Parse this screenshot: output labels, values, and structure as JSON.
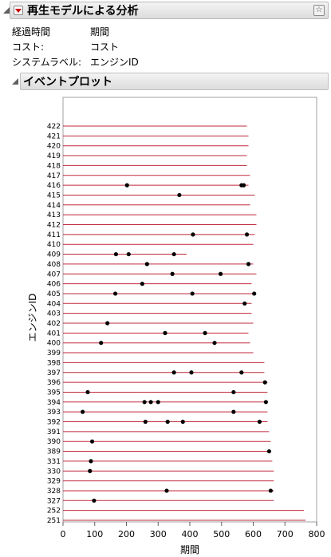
{
  "report": {
    "title": "再生モデルによる分析",
    "fields": [
      {
        "label": "経過時間",
        "value": "期間"
      },
      {
        "label": "コスト:",
        "value": "コスト"
      },
      {
        "label": "システムラベル:",
        "value": "エンジンID"
      }
    ]
  },
  "section": {
    "title": "イベントプロット"
  },
  "chart_data": {
    "type": "scatter",
    "xlabel": "期間",
    "ylabel": "エンジンID",
    "xlim": [
      0,
      800
    ],
    "xticks": [
      0,
      100,
      200,
      300,
      400,
      500,
      600,
      700,
      800
    ],
    "line_color": "#c0283c",
    "point_color": "#000000",
    "units": [
      {
        "id": "422",
        "end": 580,
        "events": []
      },
      {
        "id": "421",
        "end": 585,
        "events": []
      },
      {
        "id": "420",
        "end": 585,
        "events": []
      },
      {
        "id": "419",
        "end": 580,
        "events": []
      },
      {
        "id": "418",
        "end": 580,
        "events": []
      },
      {
        "id": "417",
        "end": 590,
        "events": []
      },
      {
        "id": "416",
        "end": 585,
        "events": [
          202,
          563,
          570
        ]
      },
      {
        "id": "415",
        "end": 605,
        "events": [
          367
        ]
      },
      {
        "id": "414",
        "end": 590,
        "events": []
      },
      {
        "id": "413",
        "end": 610,
        "events": []
      },
      {
        "id": "412",
        "end": 610,
        "events": []
      },
      {
        "id": "411",
        "end": 605,
        "events": [
          410,
          580
        ]
      },
      {
        "id": "410",
        "end": 600,
        "events": []
      },
      {
        "id": "409",
        "end": 390,
        "events": [
          167,
          207,
          350
        ]
      },
      {
        "id": "408",
        "end": 600,
        "events": [
          265,
          585
        ]
      },
      {
        "id": "407",
        "end": 610,
        "events": [
          345,
          497
        ]
      },
      {
        "id": "406",
        "end": 595,
        "events": [
          250
        ]
      },
      {
        "id": "405",
        "end": 605,
        "events": [
          165,
          408,
          603
        ]
      },
      {
        "id": "404",
        "end": 595,
        "events": [
          573
        ]
      },
      {
        "id": "403",
        "end": 595,
        "events": []
      },
      {
        "id": "402",
        "end": 600,
        "events": [
          140
        ]
      },
      {
        "id": "401",
        "end": 585,
        "events": [
          322,
          448
        ]
      },
      {
        "id": "400",
        "end": 590,
        "events": [
          120,
          478
        ]
      },
      {
        "id": "399",
        "end": 600,
        "events": []
      },
      {
        "id": "398",
        "end": 635,
        "events": []
      },
      {
        "id": "397",
        "end": 635,
        "events": [
          350,
          405,
          563
        ]
      },
      {
        "id": "396",
        "end": 645,
        "events": [
          637
        ]
      },
      {
        "id": "395",
        "end": 645,
        "events": [
          78,
          538
        ]
      },
      {
        "id": "394",
        "end": 645,
        "events": [
          257,
          277,
          300,
          640
        ]
      },
      {
        "id": "393",
        "end": 645,
        "events": [
          62,
          538
        ]
      },
      {
        "id": "392",
        "end": 645,
        "events": [
          260,
          330,
          378,
          620
        ]
      },
      {
        "id": "391",
        "end": 650,
        "events": []
      },
      {
        "id": "390",
        "end": 655,
        "events": [
          92
        ]
      },
      {
        "id": "389",
        "end": 655,
        "events": [
          650
        ]
      },
      {
        "id": "331",
        "end": 660,
        "events": [
          88
        ]
      },
      {
        "id": "330",
        "end": 665,
        "events": [
          85
        ]
      },
      {
        "id": "329",
        "end": 665,
        "events": []
      },
      {
        "id": "328",
        "end": 665,
        "events": [
          327,
          655
        ]
      },
      {
        "id": "327",
        "end": 665,
        "events": [
          98
        ]
      },
      {
        "id": "252",
        "end": 760,
        "events": []
      },
      {
        "id": "251",
        "end": 765,
        "events": []
      }
    ]
  }
}
